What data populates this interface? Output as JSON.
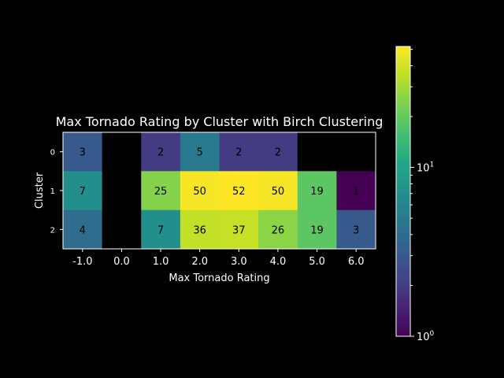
{
  "chart_data": {
    "type": "heatmap",
    "title": "Max Tornado Rating by Cluster with Birch Clustering",
    "xlabel": "Max Tornado Rating",
    "ylabel": "Cluster",
    "x_categories": [
      "-1.0",
      "0.0",
      "1.0",
      "2.0",
      "3.0",
      "4.0",
      "5.0",
      "6.0"
    ],
    "y_categories": [
      "0",
      "1",
      "2"
    ],
    "values": [
      [
        3,
        null,
        2,
        5,
        2,
        2,
        null,
        null
      ],
      [
        7,
        null,
        25,
        50,
        52,
        50,
        19,
        1
      ],
      [
        4,
        null,
        7,
        36,
        37,
        26,
        19,
        3
      ]
    ],
    "colormap": "viridis",
    "color_scale": "log",
    "color_range": [
      1,
      52
    ],
    "colorbar_ticks": [
      "10^0",
      "10^1"
    ],
    "missing_color": "#000000"
  }
}
